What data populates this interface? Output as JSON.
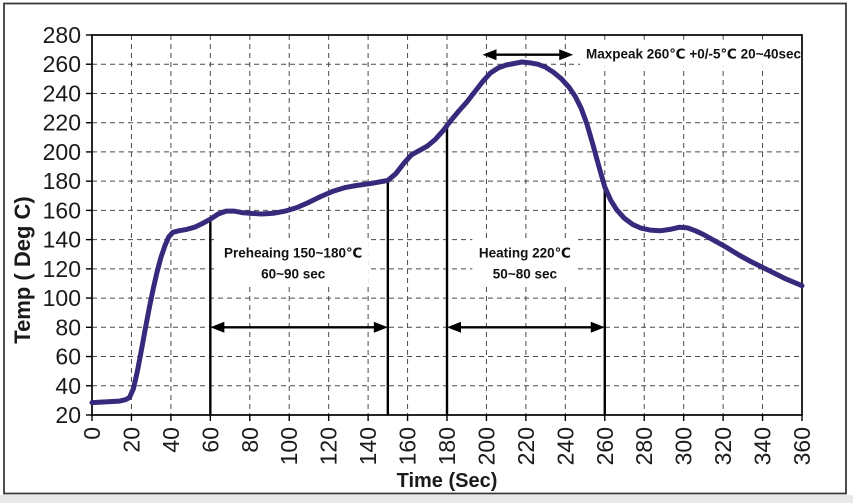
{
  "figure": {
    "kind": "reflow-soldering-temperature-profile"
  },
  "chart_data": {
    "type": "line",
    "xlabel": "Time (Sec)",
    "ylabel": "Temp ( Deg C)",
    "xlim": [
      0,
      360
    ],
    "ylim": [
      20,
      280
    ],
    "xticks": [
      0,
      20,
      40,
      60,
      80,
      100,
      120,
      140,
      160,
      180,
      200,
      220,
      240,
      260,
      280,
      300,
      320,
      340,
      360
    ],
    "yticks": [
      20,
      40,
      60,
      80,
      100,
      120,
      140,
      160,
      180,
      200,
      220,
      240,
      260,
      280
    ],
    "grid": true,
    "legend": "none",
    "colors": {
      "curve": "#372a7d",
      "grid": "#4a4a4a",
      "axis": "#000000",
      "annotation_text": "#111111",
      "frame": "#3a3a3a"
    },
    "series": [
      {
        "name": "temperature-profile",
        "points": [
          [
            0,
            28.5
          ],
          [
            8,
            29
          ],
          [
            14,
            29.5
          ],
          [
            17,
            30.5
          ],
          [
            19,
            32
          ],
          [
            21,
            38
          ],
          [
            23,
            50
          ],
          [
            25,
            64
          ],
          [
            27,
            79
          ],
          [
            29,
            93
          ],
          [
            31,
            106
          ],
          [
            33,
            118
          ],
          [
            35,
            128
          ],
          [
            37,
            136
          ],
          [
            39,
            142
          ],
          [
            41,
            145
          ],
          [
            44,
            146
          ],
          [
            48,
            147
          ],
          [
            52,
            148.5
          ],
          [
            56,
            151
          ],
          [
            60,
            154
          ],
          [
            64,
            157.5
          ],
          [
            68,
            159.5
          ],
          [
            72,
            159.5
          ],
          [
            76,
            158.5
          ],
          [
            80,
            158
          ],
          [
            86,
            157.5
          ],
          [
            92,
            158
          ],
          [
            98,
            159.5
          ],
          [
            104,
            162
          ],
          [
            110,
            165.5
          ],
          [
            116,
            169.5
          ],
          [
            122,
            173
          ],
          [
            128,
            175.5
          ],
          [
            134,
            177
          ],
          [
            142,
            178.5
          ],
          [
            150,
            180.5
          ],
          [
            154,
            185
          ],
          [
            158,
            192
          ],
          [
            162,
            198
          ],
          [
            166,
            201
          ],
          [
            170,
            204
          ],
          [
            174,
            208.5
          ],
          [
            178,
            214.5
          ],
          [
            182,
            221.5
          ],
          [
            186,
            228
          ],
          [
            190,
            234
          ],
          [
            194,
            241
          ],
          [
            198,
            248
          ],
          [
            202,
            254
          ],
          [
            206,
            257.5
          ],
          [
            210,
            259.5
          ],
          [
            214,
            260.5
          ],
          [
            218,
            261.5
          ],
          [
            222,
            261
          ],
          [
            226,
            260
          ],
          [
            230,
            258
          ],
          [
            234,
            254.5
          ],
          [
            238,
            250
          ],
          [
            242,
            244
          ],
          [
            245,
            238
          ],
          [
            248,
            230
          ],
          [
            251,
            219
          ],
          [
            254,
            205
          ],
          [
            257,
            190
          ],
          [
            260,
            176
          ],
          [
            263,
            167
          ],
          [
            266,
            160.5
          ],
          [
            270,
            154.5
          ],
          [
            274,
            150.5
          ],
          [
            278,
            148
          ],
          [
            283,
            146.5
          ],
          [
            288,
            146
          ],
          [
            293,
            147
          ],
          [
            298,
            148.5
          ],
          [
            302,
            148
          ],
          [
            306,
            146
          ],
          [
            310,
            143.5
          ],
          [
            316,
            139
          ],
          [
            322,
            134.5
          ],
          [
            328,
            129.5
          ],
          [
            334,
            125
          ],
          [
            340,
            121
          ],
          [
            346,
            117
          ],
          [
            352,
            113
          ],
          [
            360,
            108.5
          ]
        ]
      }
    ],
    "marker_lines": [
      {
        "name": "preheat-start-line",
        "t": 60,
        "from": 20,
        "to": 153.5
      },
      {
        "name": "preheat-end-line",
        "t": 150,
        "from": 20,
        "to": 179.5
      },
      {
        "name": "heating-start-line",
        "t": 180,
        "from": 20,
        "to": 218
      },
      {
        "name": "heating-end-line",
        "t": 260,
        "from": 20,
        "to": 175.5
      }
    ],
    "arrows": [
      {
        "name": "preheat-span-arrow",
        "x1": 60,
        "x2": 150,
        "y": 80
      },
      {
        "name": "heating-span-arrow",
        "x1": 180,
        "x2": 260,
        "y": 80
      },
      {
        "name": "maxpeak-span-arrow",
        "x1": 198,
        "x2": 244,
        "y": 266.5
      }
    ],
    "annotations": [
      {
        "name": "preheating-label",
        "t": 102,
        "temp": 124,
        "lines": [
          "Preheaing 150~180℃",
          "60~90 sec"
        ]
      },
      {
        "name": "heating-label",
        "t": 219.5,
        "temp": 124,
        "lines": [
          "Heating 220℃",
          "50~80 sec"
        ]
      },
      {
        "name": "maxpeak-label",
        "t": 305,
        "temp": 267.5,
        "lines": [
          "Maxpeak 260℃ +0/-5℃ 20~40sec"
        ]
      }
    ]
  }
}
